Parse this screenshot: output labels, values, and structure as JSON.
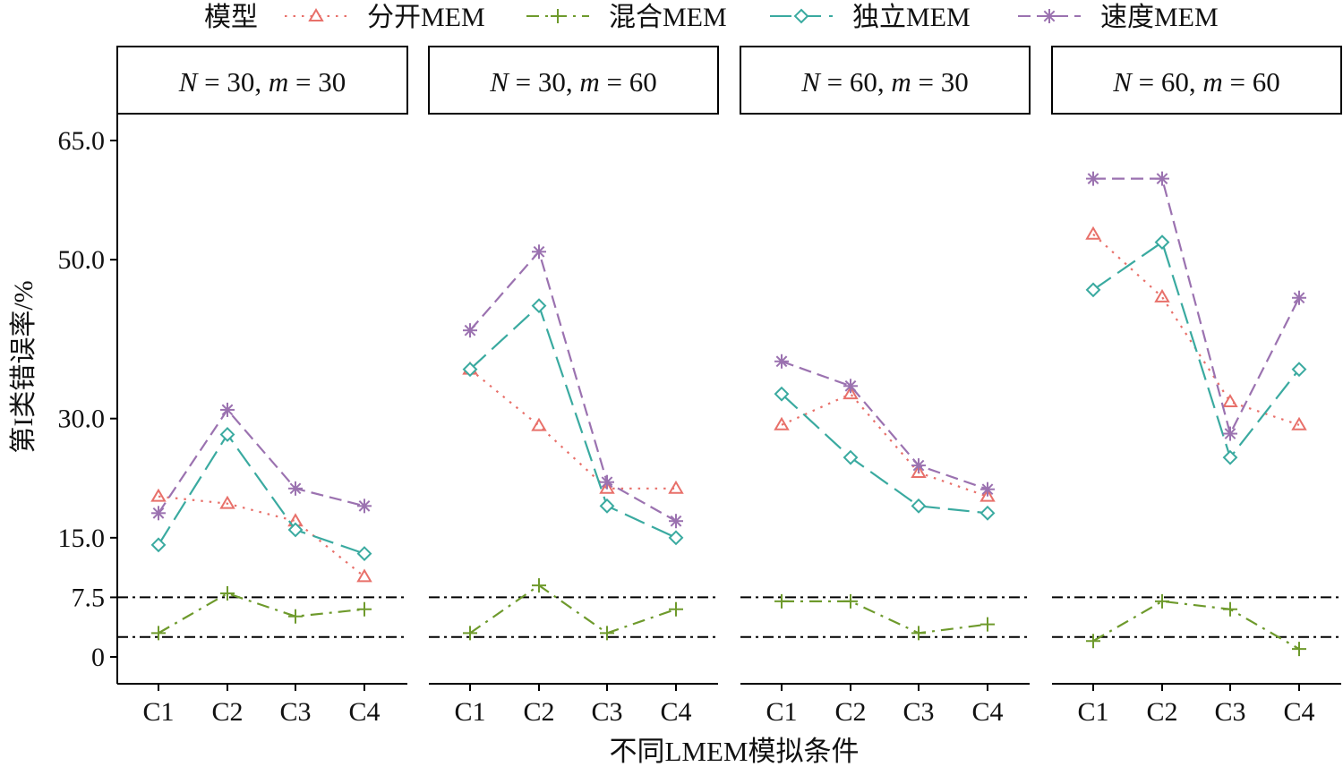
{
  "chart_data": {
    "type": "line",
    "title": "",
    "xlabel": "不同LMEM模拟条件",
    "ylabel": "第I类错误率/%",
    "ylim": [
      0,
      65
    ],
    "yticks": [
      0,
      7.5,
      15.0,
      30.0,
      50.0,
      65.0
    ],
    "ytick_labels": [
      "0",
      "7.5",
      "15.0",
      "30.0",
      "50.0",
      "65.0"
    ],
    "reference_lines": [
      2.5,
      7.5
    ],
    "grid": false,
    "legend": {
      "title": "模型",
      "placement": "top",
      "entries": [
        "分开MEM",
        "混合MEM",
        "独立MEM",
        "速度MEM"
      ]
    },
    "categories": [
      "C1",
      "C2",
      "C3",
      "C4"
    ],
    "series_style": [
      {
        "name": "分开MEM",
        "color": "#E8706A",
        "marker": "triangle",
        "dash": "dotted"
      },
      {
        "name": "混合MEM",
        "color": "#6E9A2C",
        "marker": "plus",
        "dash": "dashdot"
      },
      {
        "name": "独立MEM",
        "color": "#3AAAA0",
        "marker": "diamond",
        "dash": "longdash"
      },
      {
        "name": "速度MEM",
        "color": "#9B72B0",
        "marker": "asterisk",
        "dash": "dashed"
      }
    ],
    "panels": [
      {
        "label": {
          "N": "30",
          "m": "30"
        },
        "series": [
          {
            "name": "分开MEM",
            "values": [
              20.2,
              19.3,
              17.1,
              10.1
            ]
          },
          {
            "name": "混合MEM",
            "values": [
              3.0,
              8.0,
              5.1,
              6.0
            ]
          },
          {
            "name": "独立MEM",
            "values": [
              14.1,
              28.0,
              16.0,
              13.0
            ]
          },
          {
            "name": "速度MEM",
            "values": [
              18.1,
              31.1,
              21.2,
              19.0
            ]
          }
        ]
      },
      {
        "label": {
          "N": "30",
          "m": "60"
        },
        "series": [
          {
            "name": "分开MEM",
            "values": [
              36.2,
              29.1,
              21.2,
              21.2
            ]
          },
          {
            "name": "混合MEM",
            "values": [
              3.0,
              9.0,
              3.0,
              6.0
            ]
          },
          {
            "name": "独立MEM",
            "values": [
              36.2,
              44.2,
              19.0,
              15.0
            ]
          },
          {
            "name": "速度MEM",
            "values": [
              41.1,
              51.0,
              22.0,
              17.1
            ]
          }
        ]
      },
      {
        "label": {
          "N": "60",
          "m": "30"
        },
        "series": [
          {
            "name": "分开MEM",
            "values": [
              29.2,
              33.1,
              23.2,
              20.2
            ]
          },
          {
            "name": "混合MEM",
            "values": [
              7.0,
              7.0,
              3.0,
              4.1
            ]
          },
          {
            "name": "独立MEM",
            "values": [
              33.1,
              25.1,
              19.0,
              18.1
            ]
          },
          {
            "name": "速度MEM",
            "values": [
              37.2,
              34.1,
              24.1,
              21.1
            ]
          }
        ]
      },
      {
        "label": {
          "N": "60",
          "m": "60"
        },
        "series": [
          {
            "name": "分开MEM",
            "values": [
              53.2,
              45.3,
              32.1,
              29.2
            ]
          },
          {
            "name": "混合MEM",
            "values": [
              2.0,
              7.0,
              6.0,
              1.0
            ]
          },
          {
            "name": "独立MEM",
            "values": [
              46.2,
              52.2,
              25.1,
              36.2
            ]
          },
          {
            "name": "速度MEM",
            "values": [
              60.2,
              60.2,
              28.1,
              45.2
            ]
          }
        ]
      }
    ]
  }
}
